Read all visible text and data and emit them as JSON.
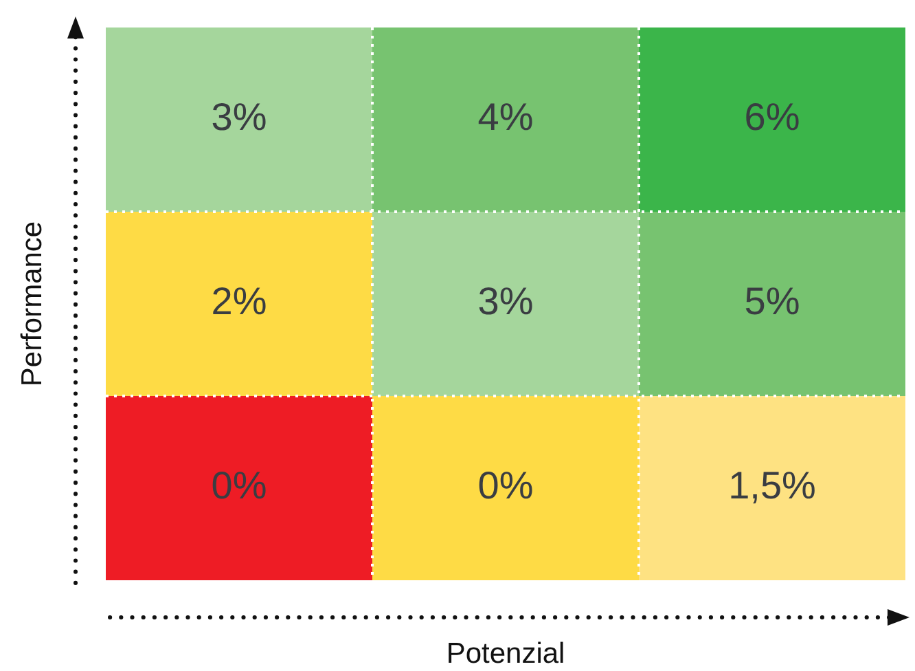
{
  "chart_data": {
    "type": "heatmap",
    "xlabel": "Potenzial",
    "ylabel": "Performance",
    "categories": [
      null,
      null,
      null
    ],
    "y_categories": [
      null,
      null,
      null
    ],
    "cells": [
      [
        3,
        4,
        6
      ],
      [
        2,
        3,
        5
      ],
      [
        0,
        0,
        1.5
      ]
    ],
    "cell_labels": [
      [
        "3%",
        "4%",
        "6%"
      ],
      [
        "2%",
        "3%",
        "5%"
      ],
      [
        "0%",
        "0%",
        "1,5%"
      ]
    ],
    "colors": [
      [
        "#a5d69c",
        "#77c370",
        "#3bb54a"
      ],
      [
        "#fedb45",
        "#a5d69c",
        "#77c370"
      ],
      [
        "#ee1c25",
        "#fedb45",
        "#fee282"
      ]
    ]
  }
}
